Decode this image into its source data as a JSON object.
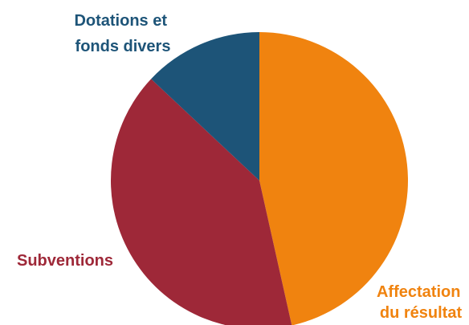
{
  "chart_data": {
    "type": "pie",
    "categories": [
      "Affectation du résultat",
      "Subventions",
      "Dotations et fonds divers"
    ],
    "values": [
      46.5,
      40.5,
      13
    ],
    "colors": [
      "#F0830F",
      "#9E2838",
      "#1D5478"
    ],
    "slices": [
      {
        "label_lines": [
          "Affectation",
          "du résultat"
        ],
        "value": 46.5,
        "color": "#F0830F"
      },
      {
        "label_lines": [
          "Subventions"
        ],
        "value": 40.5,
        "color": "#9E2838"
      },
      {
        "label_lines": [
          "Dotations et",
          "fonds divers"
        ],
        "value": 13,
        "color": "#1D5478"
      }
    ],
    "start": "12 o'clock, clockwise",
    "legend": "none"
  }
}
